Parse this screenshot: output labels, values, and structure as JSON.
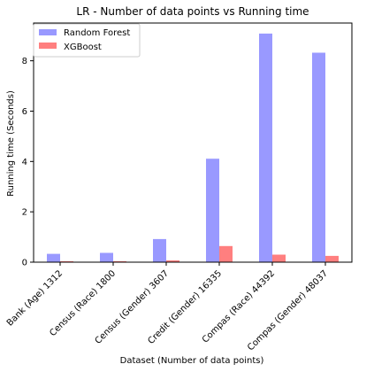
{
  "chart_data": {
    "type": "bar",
    "title": "LR - Number of data points vs Running time",
    "xlabel": "Dataset (Number of data points)",
    "ylabel": "Running time (Seconds)",
    "categories": [
      "Bank (Age) 1312",
      "Census (Race) 1800",
      "Census (Gender) 3607",
      "Credit (Gender) 16335",
      "Compas (Race) 44392",
      "Compas (Gender) 48037"
    ],
    "series": [
      {
        "name": "Random Forest",
        "color": "#9999ff",
        "values": [
          0.33,
          0.37,
          0.92,
          4.11,
          9.08,
          8.32
        ]
      },
      {
        "name": "XGBoost",
        "color": "#ff7f7f",
        "values": [
          0.04,
          0.04,
          0.07,
          0.64,
          0.3,
          0.25
        ]
      }
    ],
    "ylim": [
      0,
      9.5
    ],
    "yticks": [
      "0",
      "2",
      "4",
      "6",
      "8"
    ],
    "grid": false,
    "legend_position": "top-left"
  }
}
